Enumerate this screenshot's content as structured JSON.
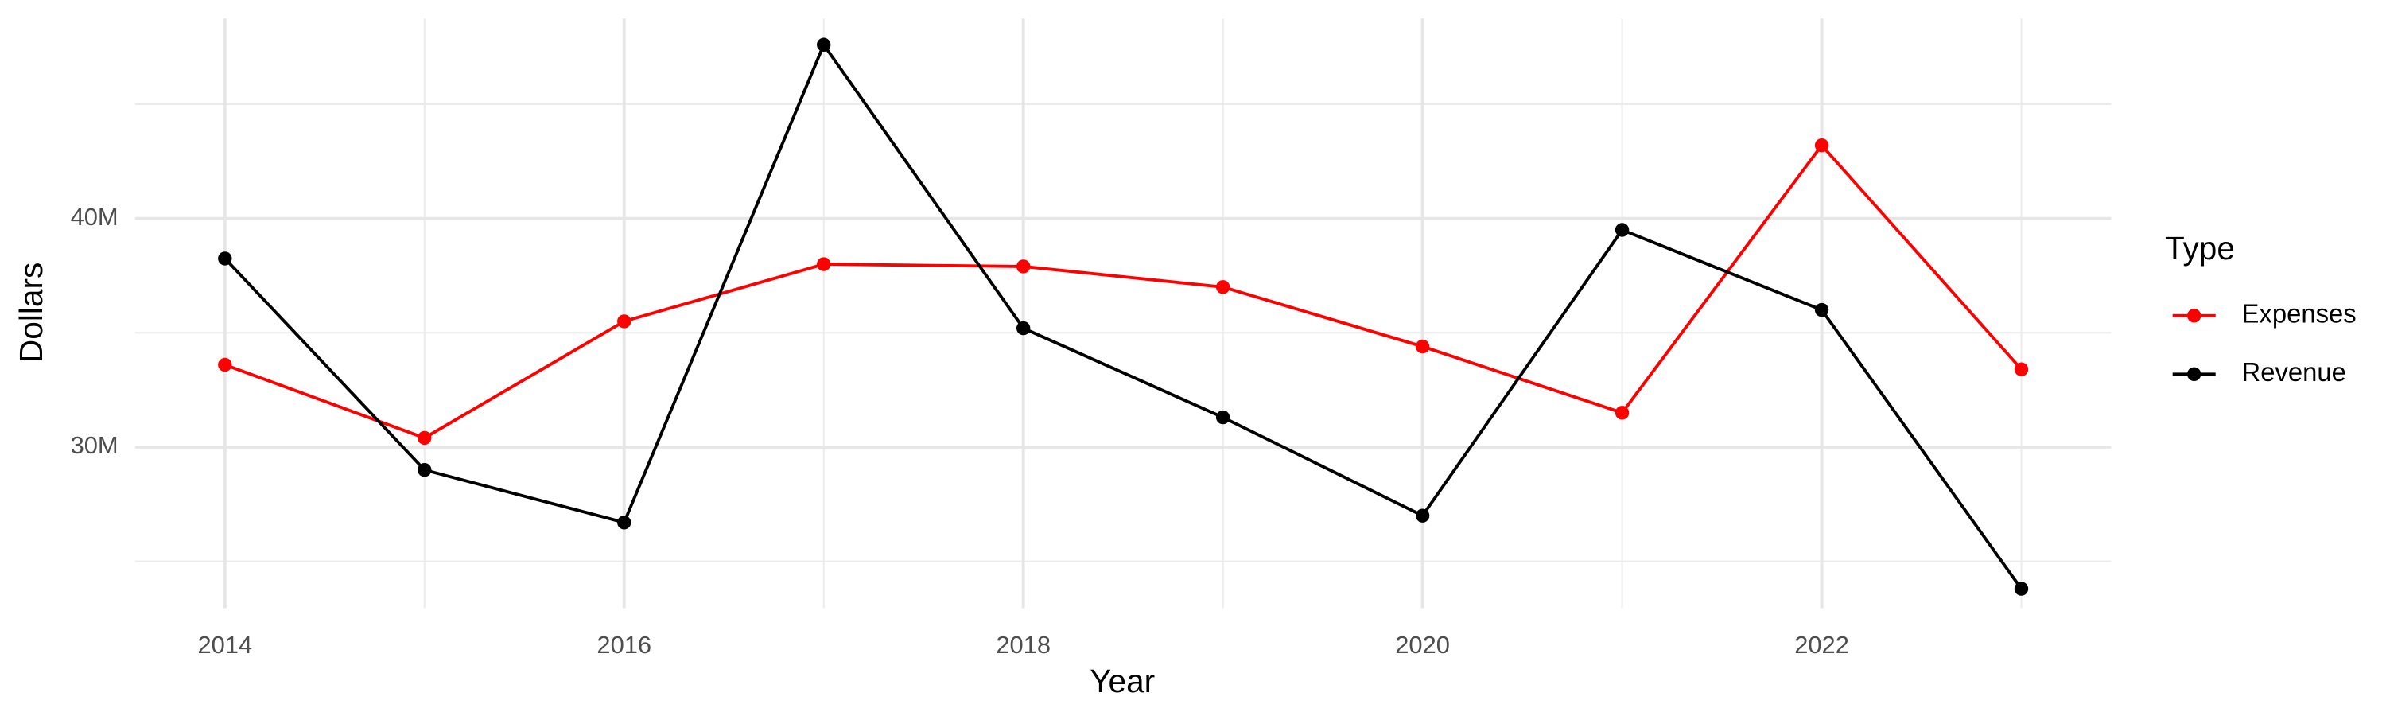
{
  "chart_data": {
    "type": "line",
    "x_label": "Year",
    "y_label": "Dollars",
    "x": [
      2014,
      2015,
      2016,
      2017,
      2018,
      2019,
      2020,
      2021,
      2022,
      2023
    ],
    "series": [
      {
        "name": "Expenses",
        "color": "#ff0000",
        "values": [
          33600000,
          30400000,
          35500000,
          38000000,
          37900000,
          37000000,
          34400000,
          31500000,
          43200000,
          33400000
        ]
      },
      {
        "name": "Revenue",
        "color": "#000000",
        "values": [
          38250000,
          29000000,
          26700000,
          47600000,
          35200000,
          31300000,
          27000000,
          39500000,
          36000000,
          23800000
        ]
      }
    ],
    "xlim": [
      2013.55,
      2023.45
    ],
    "xticks": [
      2014,
      2016,
      2018,
      2020,
      2022
    ],
    "minor_xticks": [
      2015,
      2017,
      2019,
      2021,
      2023
    ],
    "ylim": [
      22950000,
      48750000
    ],
    "yticks": [
      {
        "value": 30000000,
        "label": "30M"
      },
      {
        "value": 40000000,
        "label": "40M"
      }
    ],
    "minor_yticks": [
      25000000,
      35000000,
      45000000
    ],
    "grid": true,
    "legend_title": "Type",
    "legend_position": "right"
  }
}
